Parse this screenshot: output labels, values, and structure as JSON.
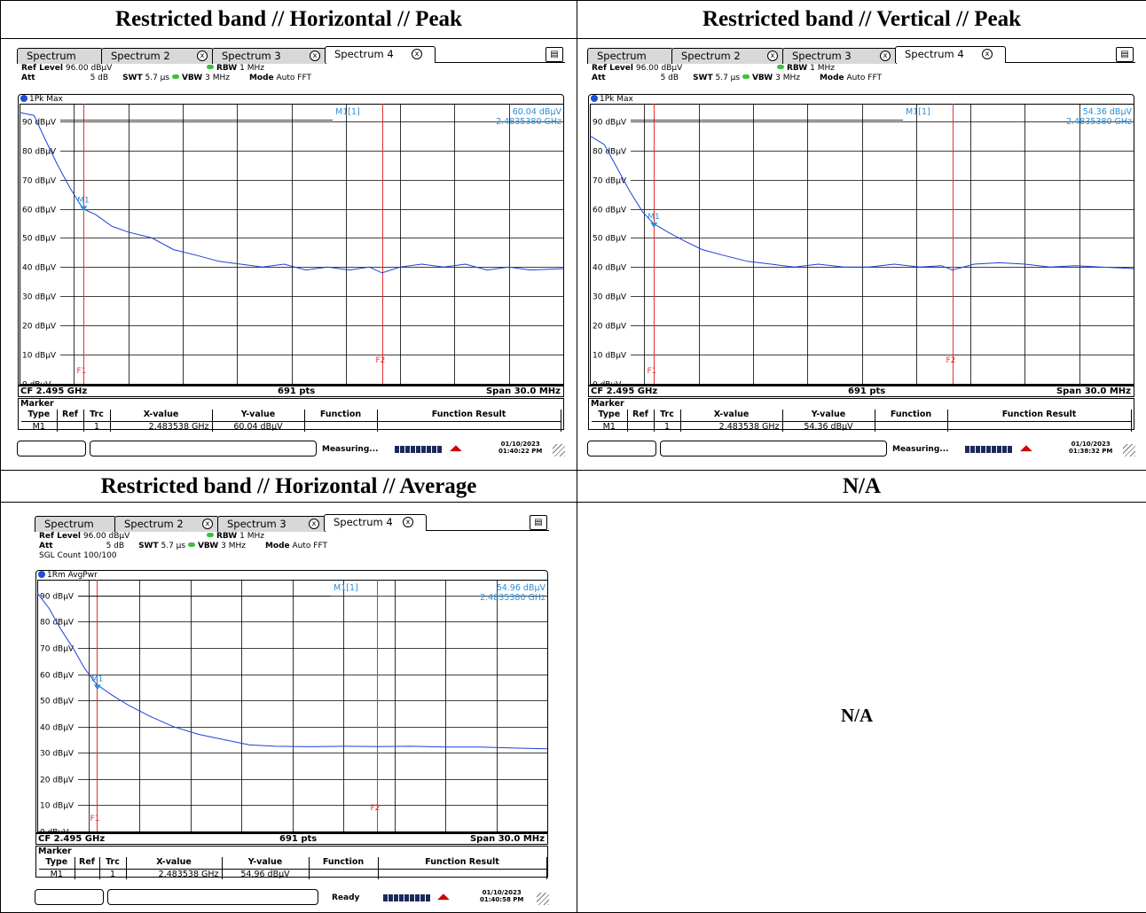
{
  "table": {
    "headers": [
      "Restricted band // Horizontal // Peak",
      "Restricted band // Vertical // Peak",
      "Restricted band // Horizontal // Average",
      "N/A"
    ],
    "na_text": "N/A"
  },
  "screens": [
    {
      "tabs": [
        "Spectrum",
        "Spectrum 2",
        "Spectrum 3",
        "Spectrum 4"
      ],
      "ref_level_label": "Ref Level",
      "ref_level": "96.00 dBµV",
      "att_label": "Att",
      "att": "5 dB",
      "swt_label": "SWT",
      "swt": "5.7 µs",
      "rbw_label": "RBW",
      "rbw": "1 MHz",
      "vbw_label": "VBW",
      "vbw": "3 MHz",
      "mode_label": "Mode",
      "mode": "Auto FFT",
      "sgl": "",
      "trace_label": "1Pk Max",
      "marker_readout": "M1[1]",
      "marker_level": "60.04 dBµV",
      "marker_freq": "2.4835380 GHz",
      "cf": "CF 2.495 GHz",
      "pts": "691 pts",
      "span": "Span 30.0 MHz",
      "marker_title": "Marker",
      "marker_headers": [
        "Type",
        "Ref",
        "Trc",
        "X-value",
        "Y-value",
        "Function",
        "Function Result"
      ],
      "marker_row": [
        "M1",
        "",
        "1",
        "2.483538 GHz",
        "60.04 dBµV",
        "",
        ""
      ],
      "status": "Measuring...",
      "date": "01/10/2023",
      "time": "01:40:22 PM"
    },
    {
      "tabs": [
        "Spectrum",
        "Spectrum 2",
        "Spectrum 3",
        "Spectrum 4"
      ],
      "ref_level_label": "Ref Level",
      "ref_level": "96.00 dBµV",
      "att_label": "Att",
      "att": "5 dB",
      "swt_label": "SWT",
      "swt": "5.7 µs",
      "rbw_label": "RBW",
      "rbw": "1 MHz",
      "vbw_label": "VBW",
      "vbw": "3 MHz",
      "mode_label": "Mode",
      "mode": "Auto FFT",
      "sgl": "",
      "trace_label": "1Pk Max",
      "marker_readout": "M1[1]",
      "marker_level": "54.36 dBµV",
      "marker_freq": "2.4835380 GHz",
      "cf": "CF 2.495 GHz",
      "pts": "691 pts",
      "span": "Span 30.0 MHz",
      "marker_title": "Marker",
      "marker_headers": [
        "Type",
        "Ref",
        "Trc",
        "X-value",
        "Y-value",
        "Function",
        "Function Result"
      ],
      "marker_row": [
        "M1",
        "",
        "1",
        "2.483538 GHz",
        "54.36 dBµV",
        "",
        ""
      ],
      "status": "Measuring...",
      "date": "01/10/2023",
      "time": "01:38:32 PM"
    },
    {
      "tabs": [
        "Spectrum",
        "Spectrum 2",
        "Spectrum 3",
        "Spectrum 4"
      ],
      "ref_level_label": "Ref Level",
      "ref_level": "96.00 dBµV",
      "att_label": "Att",
      "att": "5 dB",
      "swt_label": "SWT",
      "swt": "5.7 µs",
      "rbw_label": "RBW",
      "rbw": "1 MHz",
      "vbw_label": "VBW",
      "vbw": "3 MHz",
      "mode_label": "Mode",
      "mode": "Auto FFT",
      "sgl": "SGL Count 100/100",
      "trace_label": "1Rm AvgPwr",
      "marker_readout": "M1[1]",
      "marker_level": "54.96 dBµV",
      "marker_freq": "2.4835380 GHz",
      "cf": "CF 2.495 GHz",
      "pts": "691 pts",
      "span": "Span 30.0 MHz",
      "marker_title": "Marker",
      "marker_headers": [
        "Type",
        "Ref",
        "Trc",
        "X-value",
        "Y-value",
        "Function",
        "Function Result"
      ],
      "marker_row": [
        "M1",
        "",
        "1",
        "2.483538 GHz",
        "54.96 dBµV",
        "",
        ""
      ],
      "status": "Ready",
      "date": "01/10/2023",
      "time": "01:40:58 PM"
    }
  ],
  "colors": {
    "trace": "#1c3fd8",
    "lines": "#e53030",
    "marker": "#2a8fd8",
    "grid": "#000000"
  },
  "chart_data": [
    {
      "type": "line",
      "x_range_mhz": [
        2480,
        2510
      ],
      "ylim": [
        0,
        96
      ],
      "y_ticks": [
        90,
        80,
        70,
        60,
        50,
        40,
        30,
        20,
        10,
        0
      ],
      "y_tick_labels": [
        "90 dBµV",
        "80 dBµV",
        "70 dBµV",
        "60 dBµV",
        "50 dBµV",
        "40 dBµV",
        "30 dBµV",
        "20 dBµV",
        "10 dBµV",
        "0 dBµV"
      ],
      "vlines": [
        {
          "label": "F1",
          "x": 2483.5
        },
        {
          "label": "F2",
          "x": 2500
        }
      ],
      "marker": {
        "label": "M1",
        "x": 2483.538,
        "y": 60.04
      },
      "series": [
        {
          "x": [
            2480,
            2480.8,
            2481.4,
            2482.1,
            2482.8,
            2483.5,
            2484.2,
            2485.1,
            2486.0,
            2487.3,
            2488.5,
            2489.8,
            2491.0,
            2492.2,
            2493.4,
            2494.6,
            2495.8,
            2497.0,
            2498.2,
            2499.3,
            2500.0,
            2501.0,
            2502.2,
            2503.4,
            2504.6,
            2505.8,
            2507.0,
            2508.2,
            2510
          ],
          "values": [
            93,
            92,
            84,
            75,
            67,
            60,
            58,
            54,
            52,
            50,
            46,
            44,
            42,
            41,
            40,
            41,
            39,
            40,
            39,
            40,
            38,
            40,
            41,
            40,
            41,
            39,
            40,
            39,
            39.5
          ]
        }
      ]
    },
    {
      "type": "line",
      "x_range_mhz": [
        2480,
        2510
      ],
      "ylim": [
        0,
        96
      ],
      "y_ticks": [
        90,
        80,
        70,
        60,
        50,
        40,
        30,
        20,
        10,
        0
      ],
      "y_tick_labels": [
        "90 dBµV",
        "80 dBµV",
        "70 dBµV",
        "60 dBµV",
        "50 dBµV",
        "40 dBµV",
        "30 dBµV",
        "20 dBµV",
        "10 dBµV",
        "0 dBµV"
      ],
      "vlines": [
        {
          "label": "F1",
          "x": 2483.5
        },
        {
          "label": "F2",
          "x": 2500
        }
      ],
      "marker": {
        "label": "M1",
        "x": 2483.538,
        "y": 54.36
      },
      "series": [
        {
          "x": [
            2480,
            2480.8,
            2481.5,
            2482.2,
            2482.9,
            2483.5,
            2484.3,
            2485.2,
            2486.2,
            2487.4,
            2488.7,
            2490.0,
            2491.3,
            2492.6,
            2494.0,
            2495.4,
            2496.8,
            2498.2,
            2499.4,
            2500.0,
            2501.2,
            2502.6,
            2504.0,
            2505.4,
            2506.8,
            2508.2,
            2510
          ],
          "values": [
            85,
            82,
            74,
            66,
            59,
            55,
            52,
            49,
            46,
            44,
            42,
            41,
            40,
            41,
            40,
            40,
            41,
            40,
            40.5,
            39,
            41,
            41.5,
            41,
            40,
            40.5,
            40,
            39.5
          ]
        }
      ]
    },
    {
      "type": "line",
      "x_range_mhz": [
        2480,
        2510
      ],
      "ylim": [
        0,
        96
      ],
      "y_ticks": [
        90,
        80,
        70,
        60,
        50,
        40,
        30,
        20,
        10,
        0
      ],
      "y_tick_labels": [
        "90 dBµV",
        "80 dBµV",
        "70 dBµV",
        "60 dBµV",
        "50 dBµV",
        "40 dBµV",
        "30 dBµV",
        "20 dBµV",
        "10 dBµV",
        "0 dBµV"
      ],
      "vlines": [
        {
          "label": "F1",
          "x": 2483.5
        },
        {
          "label": "F2",
          "x": 2500
        }
      ],
      "marker": {
        "label": "M1",
        "x": 2483.538,
        "y": 54.96
      },
      "series": [
        {
          "x": [
            2480,
            2480.7,
            2481.4,
            2482.1,
            2482.8,
            2483.5,
            2484.4,
            2485.4,
            2486.6,
            2488.0,
            2489.5,
            2491.0,
            2492.5,
            2494.0,
            2496.0,
            2498.0,
            2500.0,
            2502.0,
            2504.0,
            2506.0,
            2508.0,
            2510
          ],
          "values": [
            91,
            85,
            77,
            70,
            62,
            56,
            52,
            48,
            44,
            40,
            37,
            35,
            33,
            32.5,
            32.3,
            32.5,
            32.4,
            32.5,
            32.2,
            32.2,
            31.8,
            31.5
          ]
        }
      ]
    }
  ]
}
